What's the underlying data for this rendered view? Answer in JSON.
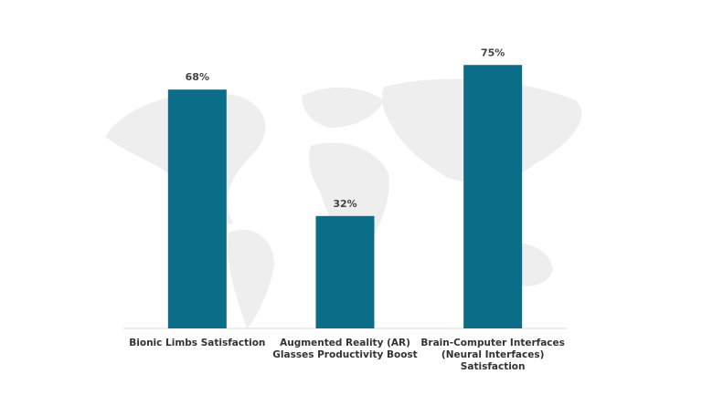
{
  "chart_data": {
    "type": "bar",
    "categories": [
      "Bionic Limbs Satisfaction",
      "Augmented Reality (AR) Glasses Productivity Boost",
      "Brain-Computer Interfaces (Neural Interfaces) Satisfaction"
    ],
    "values": [
      68,
      32,
      75
    ],
    "value_labels": [
      "68%",
      "32%",
      "75%"
    ],
    "color": "#0b6d87",
    "ylim": [
      0,
      80
    ]
  }
}
